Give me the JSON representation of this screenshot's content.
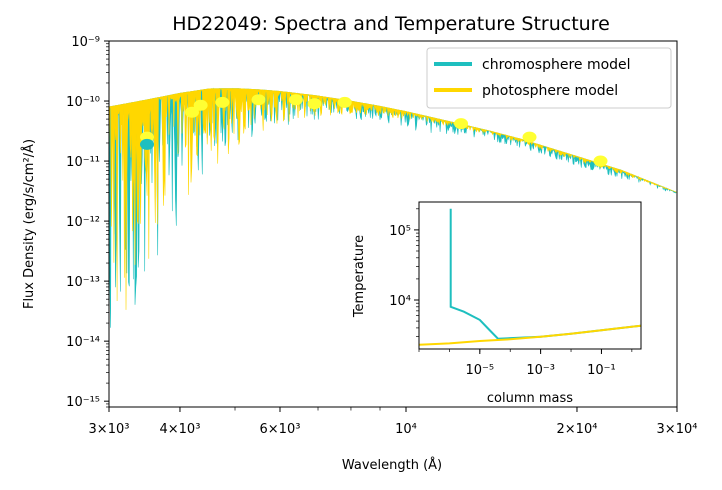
{
  "chart_data": [
    {
      "type": "line",
      "title": "HD22049: Spectra and Temperature Structure",
      "xlabel": "Wavelength (Å)",
      "ylabel": "Flux Density (erg/s/cm²/Å)",
      "xscale": "log",
      "yscale": "log",
      "xlim": [
        3000,
        30000
      ],
      "ylim": [
        8e-16,
        1e-09
      ],
      "x_ticks": [
        {
          "value": 3000,
          "label": "3×10³"
        },
        {
          "value": 4000,
          "label": "4×10³"
        },
        {
          "value": 6000,
          "label": "6×10³"
        },
        {
          "value": 10000,
          "label": "10⁴"
        },
        {
          "value": 20000,
          "label": "2×10⁴"
        },
        {
          "value": 30000,
          "label": "3×10⁴"
        }
      ],
      "y_ticks": [
        {
          "value": 1e-15,
          "label": "10⁻¹⁵"
        },
        {
          "value": 1e-14,
          "label": "10⁻¹⁴"
        },
        {
          "value": 1e-13,
          "label": "10⁻¹³"
        },
        {
          "value": 1e-12,
          "label": "10⁻¹²"
        },
        {
          "value": 1e-11,
          "label": "10⁻¹¹"
        },
        {
          "value": 1e-10,
          "label": "10⁻¹⁰"
        },
        {
          "value": 1e-09,
          "label": "10⁻⁹"
        }
      ],
      "legend_position": "top-right",
      "series": [
        {
          "name": "chromosphere model",
          "color": "#1ebfbf",
          "continuum": [
            [
              3000,
              8e-11
            ],
            [
              3500,
              1.05e-10
            ],
            [
              4000,
              1.35e-10
            ],
            [
              4500,
              1.6e-10
            ],
            [
              5000,
              1.62e-10
            ],
            [
              5500,
              1.55e-10
            ],
            [
              6000,
              1.45e-10
            ],
            [
              7000,
              1.22e-10
            ],
            [
              8000,
              1e-10
            ],
            [
              9000,
              8.2e-11
            ],
            [
              10000,
              6.7e-11
            ],
            [
              12000,
              4.5e-11
            ],
            [
              14000,
              3.2e-11
            ],
            [
              16000,
              2.3e-11
            ],
            [
              20000,
              1.2e-11
            ],
            [
              24000,
              7e-12
            ],
            [
              30000,
              3e-12
            ]
          ],
          "lower_envelope": [
            [
              3000,
              4e-15
            ],
            [
              3150,
              6e-14
            ],
            [
              3300,
              2e-14
            ],
            [
              3500,
              2e-13
            ],
            [
              3700,
              1e-13
            ],
            [
              3900,
              5e-13
            ],
            [
              4100,
              2e-12
            ],
            [
              4300,
              4e-12
            ],
            [
              4600,
              1e-11
            ],
            [
              5000,
              1.5e-11
            ],
            [
              5500,
              3e-11
            ],
            [
              6000,
              3.5e-11
            ],
            [
              7000,
              4.5e-11
            ],
            [
              8000,
              5e-11
            ],
            [
              9000,
              4.5e-11
            ],
            [
              10000,
              3.5e-11
            ],
            [
              11000,
              2.8e-11
            ],
            [
              12000,
              2.8e-11
            ],
            [
              14000,
              2.2e-11
            ],
            [
              16000,
              1.6e-11
            ],
            [
              20000,
              8e-12
            ],
            [
              24000,
              5e-12
            ],
            [
              30000,
              2.8e-12
            ]
          ]
        },
        {
          "name": "photosphere model",
          "color": "#ffd700",
          "continuum": [
            [
              3000,
              8e-11
            ],
            [
              3500,
              1.05e-10
            ],
            [
              4000,
              1.35e-10
            ],
            [
              4500,
              1.6e-10
            ],
            [
              5000,
              1.62e-10
            ],
            [
              5500,
              1.55e-10
            ],
            [
              6000,
              1.45e-10
            ],
            [
              7000,
              1.22e-10
            ],
            [
              8000,
              1e-10
            ],
            [
              9000,
              8.2e-11
            ],
            [
              10000,
              6.7e-11
            ],
            [
              12000,
              4.5e-11
            ],
            [
              14000,
              3.2e-11
            ],
            [
              16000,
              2.3e-11
            ],
            [
              20000,
              1.2e-11
            ],
            [
              24000,
              7e-12
            ],
            [
              30000,
              3e-12
            ]
          ],
          "lower_envelope": [
            [
              3000,
              1.5e-14
            ],
            [
              3200,
              3e-14
            ],
            [
              3400,
              1e-13
            ],
            [
              3600,
              2e-13
            ],
            [
              3800,
              4e-13
            ],
            [
              4000,
              1e-12
            ],
            [
              4300,
              3e-12
            ],
            [
              4600,
              6e-12
            ],
            [
              5000,
              1.5e-11
            ],
            [
              5500,
              3e-11
            ],
            [
              6000,
              4e-11
            ],
            [
              7000,
              5.5e-11
            ],
            [
              8000,
              6e-11
            ],
            [
              9000,
              5.5e-11
            ],
            [
              10000,
              5e-11
            ],
            [
              12000,
              3.8e-11
            ],
            [
              14000,
              2.8e-11
            ],
            [
              16000,
              2e-11
            ],
            [
              20000,
              1e-11
            ],
            [
              24000,
              6e-12
            ],
            [
              30000,
              3e-12
            ]
          ]
        }
      ],
      "points": [
        {
          "x": 3500,
          "y": 2.5e-11
        },
        {
          "x": 3500,
          "y": 1.9e-11,
          "color": "#1ebfbf"
        },
        {
          "x": 4200,
          "y": 6.5e-11
        },
        {
          "x": 4350,
          "y": 8.5e-11
        },
        {
          "x": 4750,
          "y": 9.5e-11
        },
        {
          "x": 5500,
          "y": 1.05e-10
        },
        {
          "x": 6400,
          "y": 1.05e-10
        },
        {
          "x": 6900,
          "y": 9e-11
        },
        {
          "x": 7800,
          "y": 9.5e-11
        },
        {
          "x": 12500,
          "y": 4.2e-11
        },
        {
          "x": 16500,
          "y": 2.5e-11
        },
        {
          "x": 22000,
          "y": 1e-11
        }
      ]
    },
    {
      "type": "line",
      "title": "",
      "xlabel": "column mass",
      "ylabel": "Temperature",
      "xscale": "log",
      "yscale": "log",
      "xlim": [
        1e-07,
        2
      ],
      "ylim": [
        2000,
        250000
      ],
      "x_ticks": [
        {
          "value": 1e-05,
          "label": "10⁻⁵"
        },
        {
          "value": 0.001,
          "label": "10⁻³"
        },
        {
          "value": 0.1,
          "label": "10⁻¹"
        }
      ],
      "y_ticks": [
        {
          "value": 10000,
          "label": "10⁴"
        },
        {
          "value": 100000,
          "label": "10⁵"
        }
      ],
      "series": [
        {
          "name": "chromosphere model",
          "color": "#1ebfbf",
          "points": [
            [
              1.1e-06,
              200000
            ],
            [
              1.1e-06,
              8000
            ],
            [
              3e-06,
              6800
            ],
            [
              1e-05,
              5200
            ],
            [
              2e-05,
              3800
            ],
            [
              4e-05,
              2800
            ],
            [
              0.001,
              3000
            ],
            [
              0.01,
              3300
            ],
            [
              0.1,
              3700
            ],
            [
              2,
              4300
            ]
          ]
        },
        {
          "name": "photosphere model",
          "color": "#ffd700",
          "points": [
            [
              1e-07,
              2300
            ],
            [
              1e-06,
              2400
            ],
            [
              1e-05,
              2600
            ],
            [
              0.0001,
              2750
            ],
            [
              0.001,
              3000
            ],
            [
              0.01,
              3300
            ],
            [
              0.1,
              3700
            ],
            [
              2,
              4300
            ]
          ]
        }
      ]
    }
  ]
}
